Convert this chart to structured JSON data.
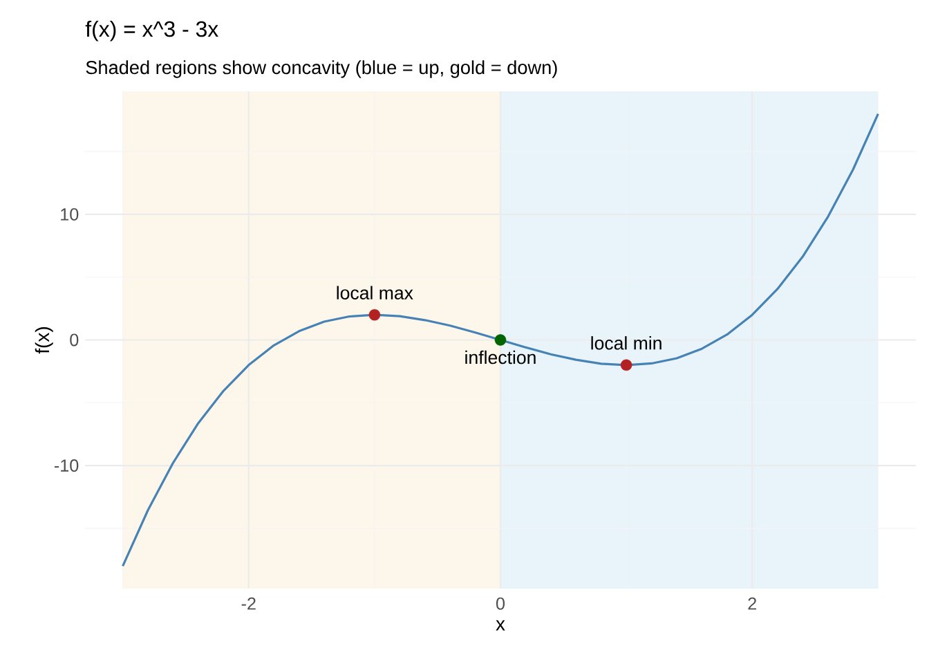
{
  "chart_data": {
    "type": "line",
    "title": "f(x) = x^3 - 3x",
    "subtitle": "Shaded regions show concavity (blue = up, gold = down)",
    "xlabel": "x",
    "ylabel": "f(x)",
    "xlim": [
      -3.3,
      3.3
    ],
    "ylim": [
      -19.8,
      19.8
    ],
    "xticks": [
      -2,
      0,
      2
    ],
    "yticks": [
      -10,
      0,
      10
    ],
    "grid": true,
    "bands": [
      {
        "axis": "x",
        "from": -3,
        "to": 0,
        "color": "#fdf6ea"
      },
      {
        "axis": "x",
        "from": 0,
        "to": 3,
        "color": "#e8f4fa"
      }
    ],
    "series": [
      {
        "color": "#4682b4",
        "x": [
          -3,
          -2.8,
          -2.6,
          -2.4,
          -2.2,
          -2,
          -1.8,
          -1.6,
          -1.4,
          -1.2,
          -1,
          -0.8,
          -0.6,
          -0.4,
          -0.2,
          0,
          0.2,
          0.4,
          0.6,
          0.8,
          1,
          1.2,
          1.4,
          1.6,
          1.8,
          2,
          2.2,
          2.4,
          2.6,
          2.8,
          3
        ],
        "values": [
          -18,
          -13.55,
          -9.78,
          -6.62,
          -4.05,
          -2,
          -0.43,
          0.7,
          1.46,
          1.87,
          2,
          1.89,
          1.58,
          1.14,
          0.59,
          0,
          -0.59,
          -1.14,
          -1.58,
          -1.89,
          -2,
          -1.87,
          -1.46,
          -0.7,
          0.43,
          2,
          4.05,
          6.62,
          9.78,
          13.55,
          18
        ]
      },
      {
        "type": "scatter",
        "marker": "circle",
        "x": [
          -1,
          1,
          0
        ],
        "values": [
          2,
          -2,
          0
        ],
        "colors": [
          "#b22222",
          "#b22222",
          "#006400"
        ]
      }
    ],
    "annotations": [
      {
        "text": "local max",
        "x": -1,
        "y": 2
      },
      {
        "text": "local min",
        "x": 1,
        "y": -2
      },
      {
        "text": "inflection",
        "x": 0,
        "y": 0
      }
    ]
  }
}
